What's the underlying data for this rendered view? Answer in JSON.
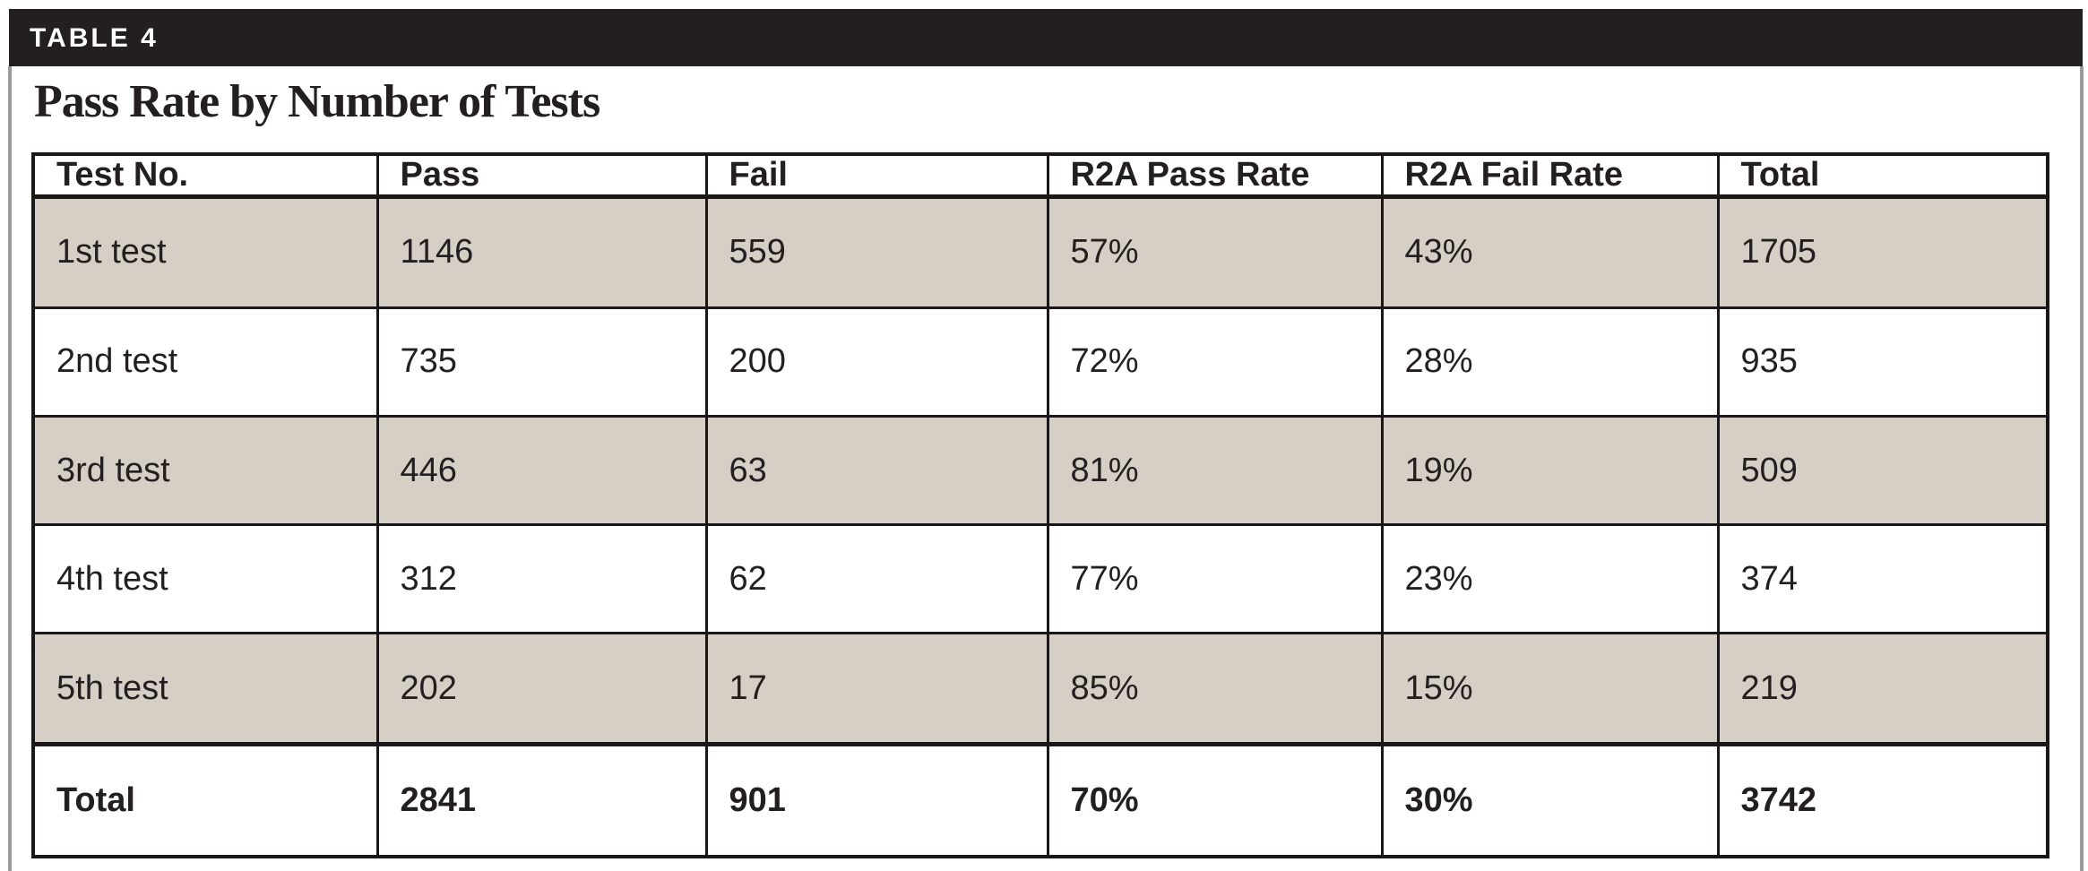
{
  "page": {
    "banner_label": "TABLE 4",
    "title": "Pass Rate by Number of Tests"
  },
  "table": {
    "columns": [
      "Test No.",
      "Pass",
      "Fail",
      "R2A Pass Rate",
      "R2A Fail Rate",
      "Total"
    ],
    "rows": [
      {
        "cells": [
          "1st test",
          "1146",
          "559",
          "57%",
          "43%",
          "1705"
        ],
        "shaded": true,
        "total": false
      },
      {
        "cells": [
          "2nd test",
          "735",
          "200",
          "72%",
          "28%",
          "935"
        ],
        "shaded": false,
        "total": false
      },
      {
        "cells": [
          "3rd test",
          "446",
          "63",
          "81%",
          "19%",
          "509"
        ],
        "shaded": true,
        "total": false
      },
      {
        "cells": [
          "4th test",
          "312",
          "62",
          "77%",
          "23%",
          "374"
        ],
        "shaded": false,
        "total": false
      },
      {
        "cells": [
          "5th test",
          "202",
          "17",
          "85%",
          "15%",
          "219"
        ],
        "shaded": true,
        "total": false
      },
      {
        "cells": [
          "Total",
          "2841",
          "901",
          "70%",
          "30%",
          "3742"
        ],
        "shaded": false,
        "total": true
      }
    ]
  },
  "colors": {
    "banner_background": "#231f20",
    "text": "#231f20",
    "table_border": "#1b1718",
    "shaded_row": "#d5cfc5",
    "page_edge_line": "#9a999b",
    "background": "#ffffff"
  }
}
